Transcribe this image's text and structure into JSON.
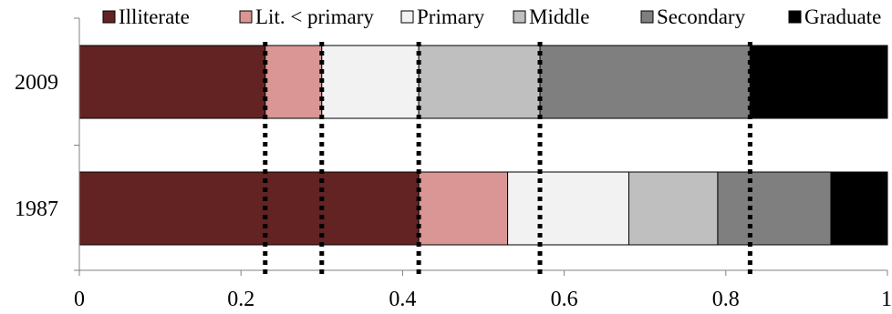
{
  "chart_data": {
    "type": "bar",
    "orientation": "horizontal",
    "stacked": true,
    "categories": [
      "2009",
      "1987"
    ],
    "series": [
      {
        "name": "Illiterate",
        "color": "#632323",
        "values": [
          0.23,
          0.42
        ]
      },
      {
        "name": "Lit. < primary",
        "color": "#d99694",
        "values": [
          0.07,
          0.11
        ]
      },
      {
        "name": "Primary",
        "color": "#f2f2f2",
        "values": [
          0.12,
          0.15
        ]
      },
      {
        "name": "Middle",
        "color": "#bfbfbf",
        "values": [
          0.15,
          0.11
        ]
      },
      {
        "name": "Secondary",
        "color": "#7f7f7f",
        "values": [
          0.26,
          0.14
        ]
      },
      {
        "name": "Graduate",
        "color": "#000000",
        "values": [
          0.17,
          0.07
        ]
      }
    ],
    "xlim": [
      0,
      1
    ],
    "xticks": [
      0,
      0.2,
      0.4,
      0.6,
      0.8,
      1
    ],
    "xtick_labels": [
      "0",
      "0.2",
      "0.4",
      "0.6",
      "0.8",
      "1"
    ],
    "reference_lines": [
      0.23,
      0.3,
      0.42,
      0.57,
      0.83
    ],
    "reference_line_style": "dotted",
    "legend_position": "top",
    "grid": false,
    "title": "",
    "xlabel": "",
    "ylabel": ""
  }
}
